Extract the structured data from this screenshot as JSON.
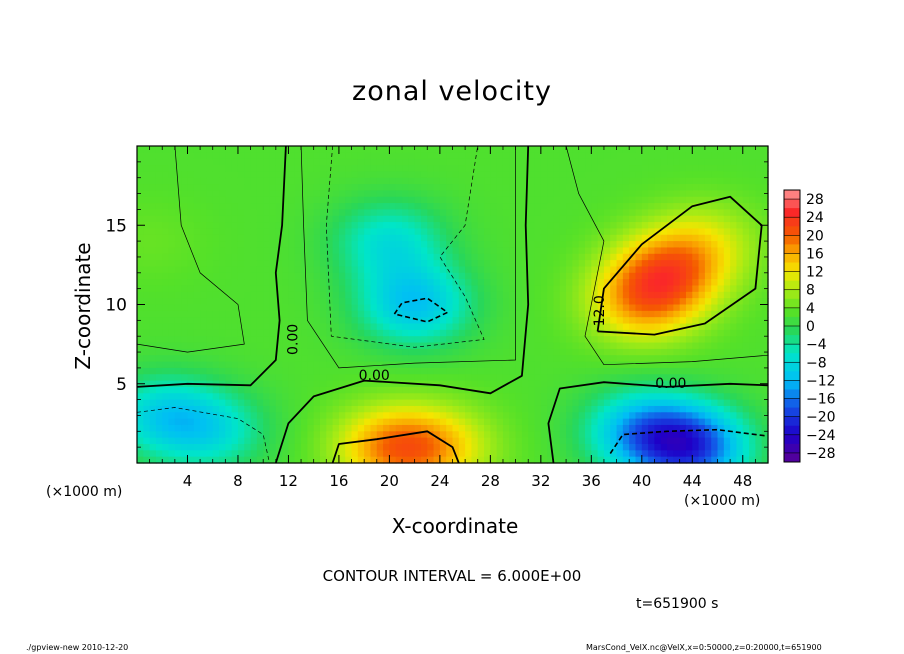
{
  "chart_data": {
    "type": "heatmap",
    "title": "zonal velocity",
    "xlabel": "X-coordinate",
    "ylabel": "Z-coordinate",
    "x_unit_left": "(×1000 m)",
    "x_unit_right": "(×1000 m)",
    "xlim": [
      0,
      50
    ],
    "ylim": [
      0,
      20
    ],
    "x_ticks": [
      "4",
      "8",
      "12",
      "16",
      "20",
      "24",
      "28",
      "32",
      "36",
      "40",
      "44",
      "48"
    ],
    "y_ticks": [
      "5",
      "10",
      "15"
    ],
    "colorbar_labels": [
      "28",
      "24",
      "20",
      "16",
      "12",
      "8",
      "4",
      "0",
      "−4",
      "−8",
      "−12",
      "−16",
      "−20",
      "−24",
      "−28"
    ],
    "colorbar_range": [
      -30,
      30
    ],
    "contour_labels": [
      {
        "text": "0.00",
        "x": 12.4,
        "z": 7.8,
        "rot": -90
      },
      {
        "text": "0.00",
        "x": 18.8,
        "z": 5.5,
        "rot": 0
      },
      {
        "text": "12.0",
        "x": 36.7,
        "z": 9.6,
        "rot": -90
      },
      {
        "text": "0.00",
        "x": 42.3,
        "z": 5.0,
        "rot": 0
      }
    ],
    "features": [
      {
        "x": 42,
        "z": 12,
        "value": 17
      },
      {
        "x": 40,
        "z": 10,
        "value": 14
      },
      {
        "x": 45,
        "z": 14,
        "value": 9
      },
      {
        "x": 20,
        "z": 1,
        "value": 16
      },
      {
        "x": 24,
        "z": 1,
        "value": 12
      },
      {
        "x": 22,
        "z": 10,
        "value": -11
      },
      {
        "x": 20,
        "z": 14,
        "value": -7
      },
      {
        "x": 44,
        "z": 1,
        "value": -18
      },
      {
        "x": 40,
        "z": 2,
        "value": -12
      },
      {
        "x": 2,
        "z": 3,
        "value": -8
      },
      {
        "x": 6,
        "z": 2,
        "value": -6
      },
      {
        "x": 1,
        "z": 14,
        "value": 4
      }
    ],
    "contour_interval": "CONTOUR INTERVAL = 6.000E+00",
    "time": "t=651900 s"
  },
  "footer": {
    "left": "./gpview-new  2010-12-20",
    "right": "MarsCond_VelX.nc@VelX,x=0:50000,z=0:20000,t=651900"
  }
}
